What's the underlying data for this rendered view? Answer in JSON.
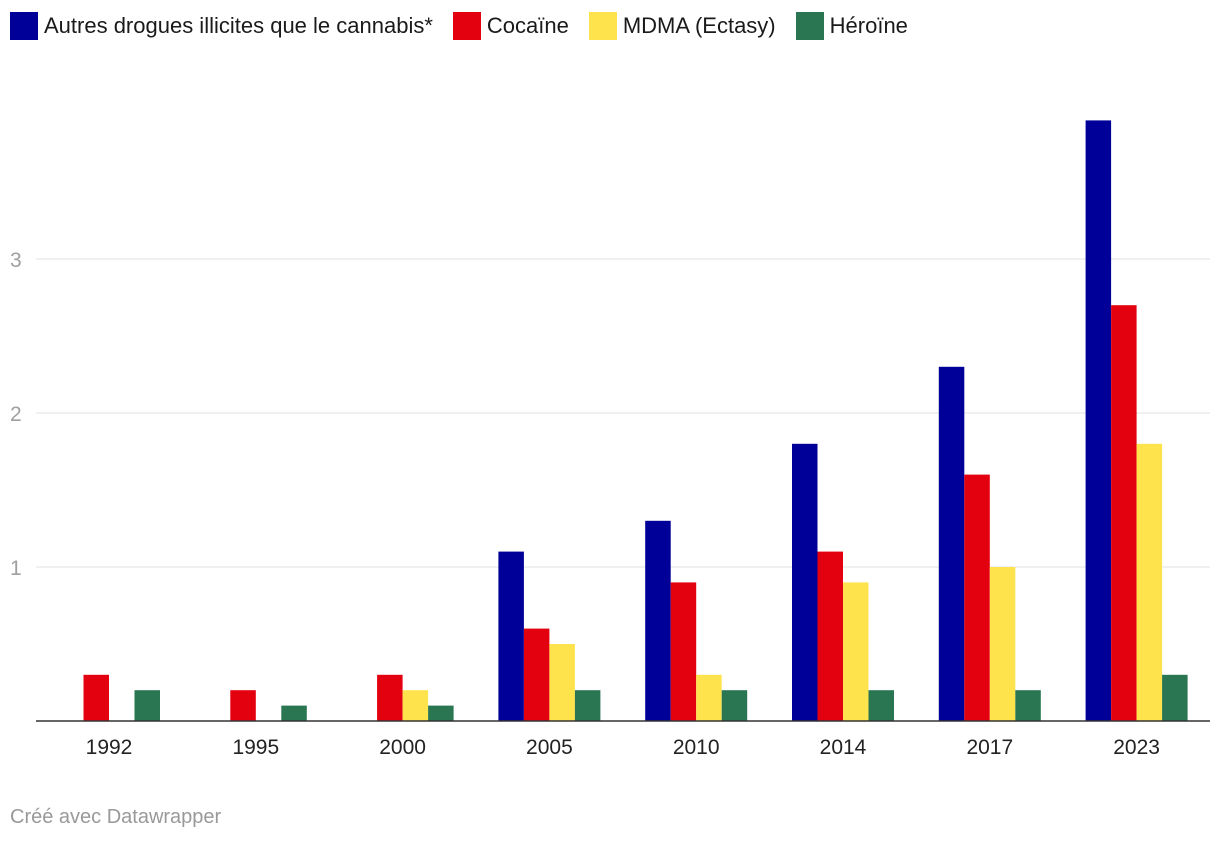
{
  "chart_data": {
    "type": "bar",
    "categories": [
      "1992",
      "1995",
      "2000",
      "2005",
      "2010",
      "2014",
      "2017",
      "2023"
    ],
    "series": [
      {
        "name": "Autres drogues illicites que le cannabis*",
        "color": "#000099",
        "values": [
          null,
          null,
          null,
          1.1,
          1.3,
          1.8,
          2.3,
          3.9
        ]
      },
      {
        "name": "Cocaïne",
        "color": "#e3000f",
        "values": [
          0.3,
          0.2,
          0.3,
          0.6,
          0.9,
          1.1,
          1.6,
          2.7
        ]
      },
      {
        "name": "MDMA (Ectasy)",
        "color": "#ffe34d",
        "values": [
          null,
          null,
          0.2,
          0.5,
          0.3,
          0.9,
          1.0,
          1.8
        ]
      },
      {
        "name": "Héroïne",
        "color": "#2a7552",
        "values": [
          0.2,
          0.1,
          0.1,
          0.2,
          0.2,
          0.2,
          0.2,
          0.3
        ]
      }
    ],
    "yticks": [
      "1",
      "2",
      "3"
    ],
    "ylim": [
      0,
      4
    ],
    "grid": true,
    "legend": "top-left",
    "title": "",
    "xlabel": "",
    "ylabel": ""
  },
  "footer": {
    "credit": "Créé avec Datawrapper"
  }
}
